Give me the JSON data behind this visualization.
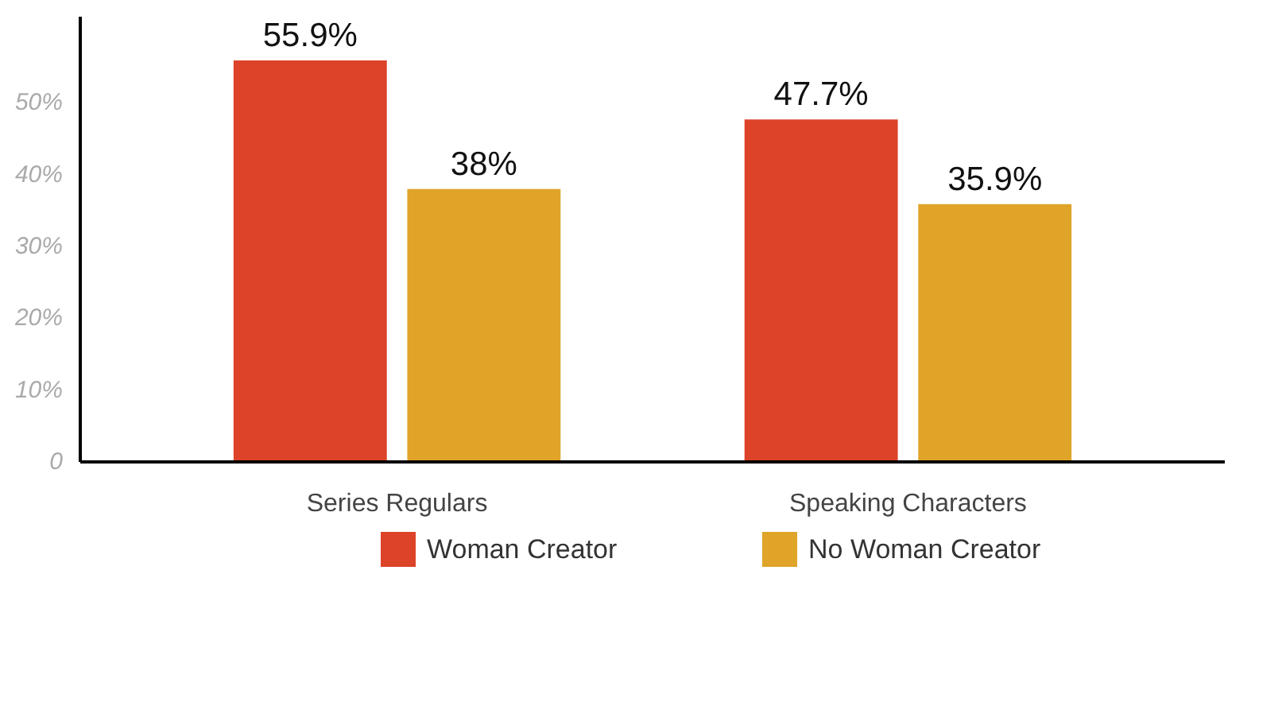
{
  "chart_data": {
    "type": "bar",
    "categories": [
      "Series Regulars",
      "Speaking Characters"
    ],
    "series": [
      {
        "name": "Woman Creator",
        "color": "#dc4328",
        "values": [
          55.9,
          47.7
        ]
      },
      {
        "name": "No Woman Creator",
        "color": "#e0a429",
        "values": [
          38,
          35.9
        ]
      }
    ],
    "value_labels": [
      [
        "55.9%",
        "47.7%"
      ],
      [
        "38%",
        "35.9%"
      ]
    ],
    "ylim": [
      0,
      62
    ],
    "yticks": [
      {
        "value": 0,
        "label": "0"
      },
      {
        "value": 10,
        "label": "10%"
      },
      {
        "value": 20,
        "label": "20%"
      },
      {
        "value": 30,
        "label": "30%"
      },
      {
        "value": 40,
        "label": "40%"
      },
      {
        "value": 50,
        "label": "50%"
      }
    ],
    "grid": false,
    "legend": "bottom"
  }
}
